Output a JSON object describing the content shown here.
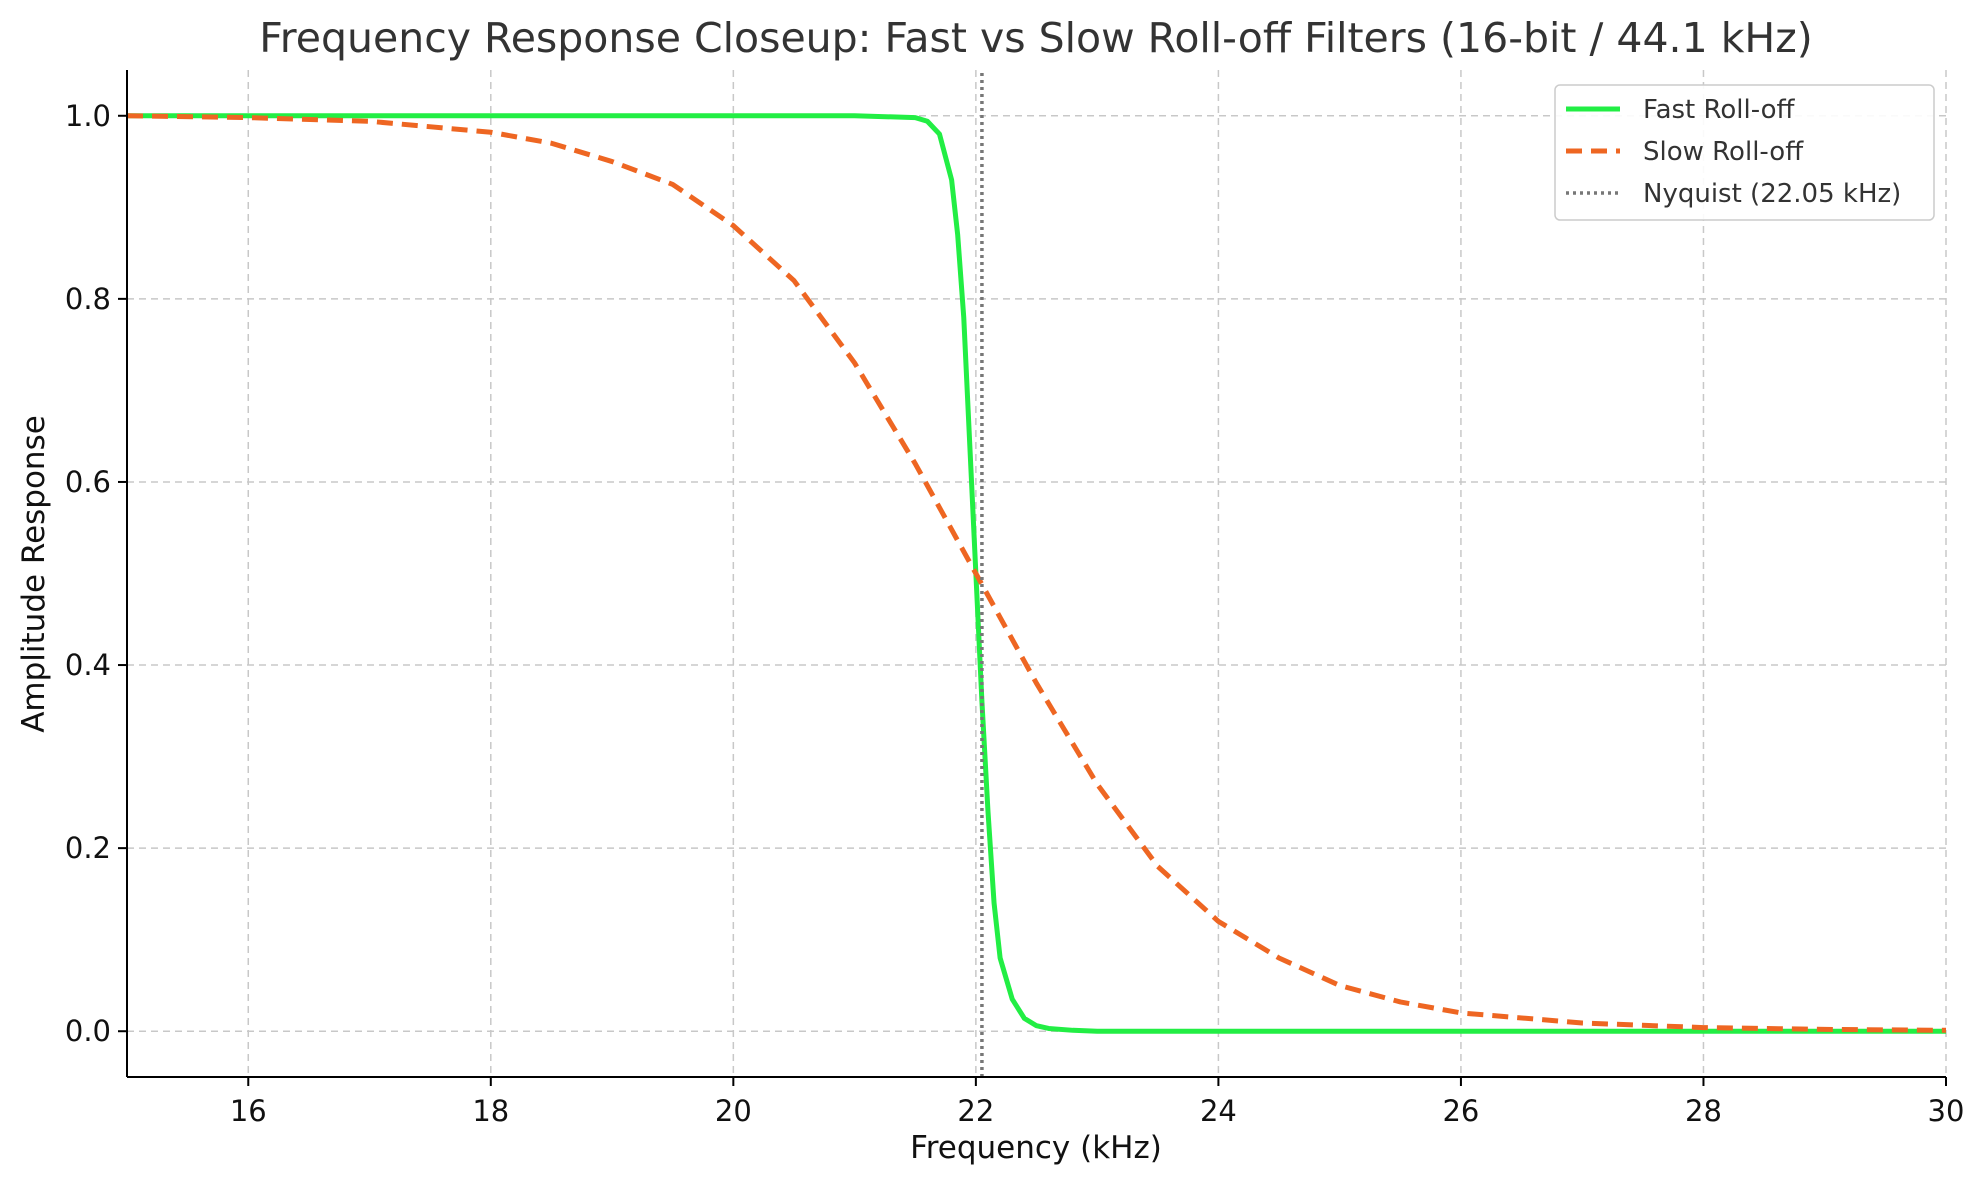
{
  "chart_data": {
    "type": "line",
    "title": "Frequency Response Closeup: Fast vs Slow Roll-off Filters (16-bit / 44.1 kHz)",
    "xlabel": "Frequency (kHz)",
    "ylabel": "Amplitude Response",
    "xlim": [
      15,
      30
    ],
    "ylim": [
      -0.05,
      1.05
    ],
    "xticks": [
      16,
      18,
      20,
      22,
      24,
      26,
      28,
      30
    ],
    "yticks": [
      0.0,
      0.2,
      0.4,
      0.6,
      0.8,
      1.0
    ],
    "xtick_labels": [
      "16",
      "18",
      "20",
      "22",
      "24",
      "26",
      "28",
      "30"
    ],
    "ytick_labels": [
      "0.0",
      "0.2",
      "0.4",
      "0.6",
      "0.8",
      "1.0"
    ],
    "grid": true,
    "legend_position": "top-right",
    "series": [
      {
        "name": "Fast Roll-off",
        "color": "#22ee44",
        "style": "solid",
        "x": [
          15,
          16,
          18,
          20,
          21,
          21.5,
          21.6,
          21.7,
          21.8,
          21.85,
          21.9,
          21.95,
          22.0,
          22.05,
          22.1,
          22.15,
          22.2,
          22.3,
          22.4,
          22.5,
          22.6,
          22.8,
          23,
          24,
          26,
          28,
          30
        ],
        "y": [
          1.0,
          1.0,
          1.0,
          1.0,
          1.0,
          0.998,
          0.994,
          0.98,
          0.93,
          0.87,
          0.78,
          0.64,
          0.5,
          0.36,
          0.24,
          0.14,
          0.08,
          0.035,
          0.014,
          0.006,
          0.003,
          0.001,
          0.0,
          0.0,
          0.0,
          0.0,
          0.0
        ]
      },
      {
        "name": "Slow Roll-off",
        "color": "#ee6622",
        "style": "dashed",
        "x": [
          15,
          16,
          17,
          18,
          18.5,
          19,
          19.5,
          20,
          20.5,
          21,
          21.5,
          22,
          22.5,
          23,
          23.5,
          24,
          24.5,
          25,
          25.5,
          26,
          27,
          28,
          29,
          30
        ],
        "y": [
          1.0,
          0.998,
          0.994,
          0.982,
          0.97,
          0.95,
          0.925,
          0.88,
          0.82,
          0.73,
          0.62,
          0.5,
          0.38,
          0.27,
          0.18,
          0.12,
          0.08,
          0.05,
          0.032,
          0.02,
          0.009,
          0.004,
          0.002,
          0.001
        ]
      },
      {
        "name": "Nyquist (22.05 kHz)",
        "color": "#777777",
        "style": "dotted",
        "x": [
          22.05,
          22.05
        ],
        "y": [
          -0.05,
          1.05
        ]
      }
    ]
  }
}
